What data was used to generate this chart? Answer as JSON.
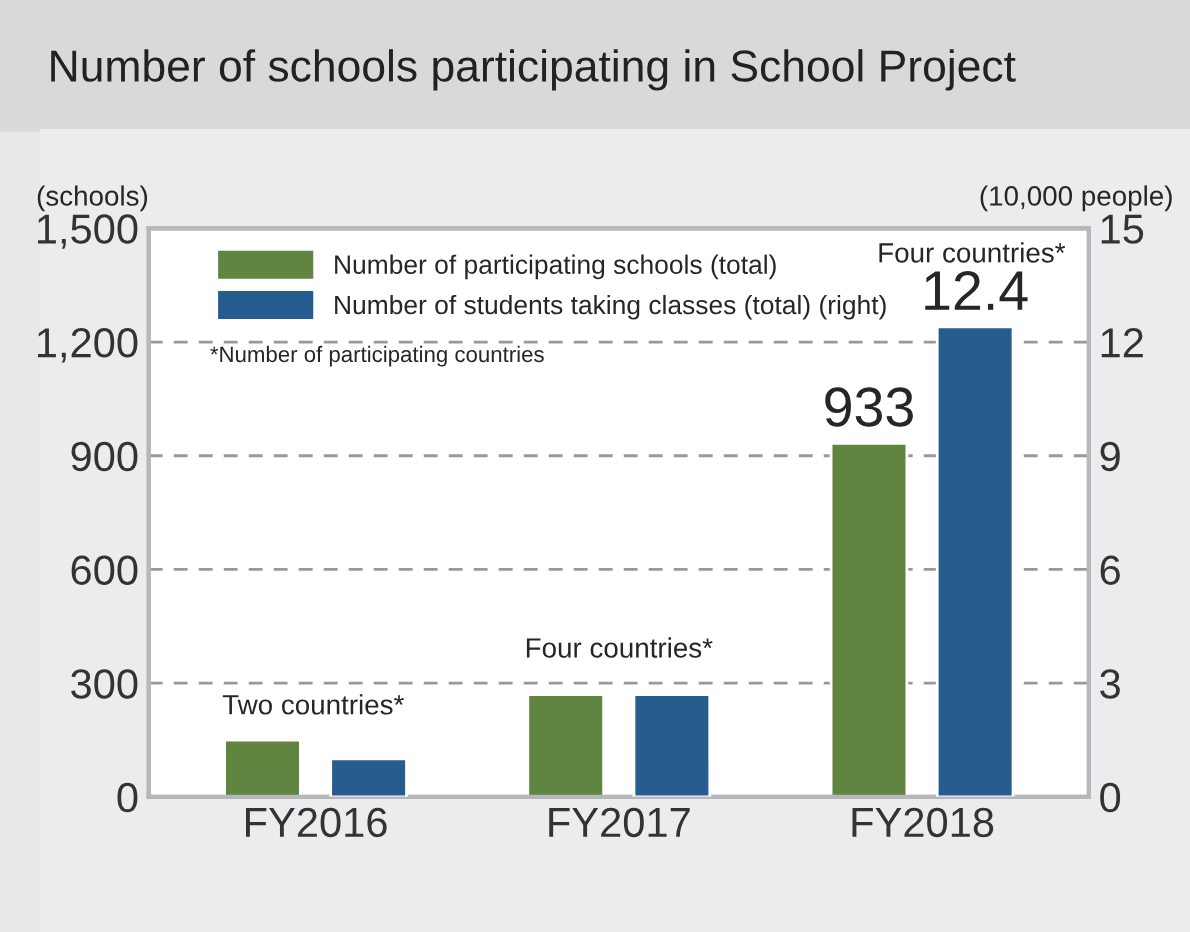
{
  "chart_data": {
    "type": "bar",
    "title": "Number of schools participating in School Project",
    "ylabel": "(schools)",
    "y2label": "(10,000 people)",
    "categories": [
      "FY2016",
      "FY2017",
      "FY2018"
    ],
    "series": [
      {
        "name": "Number of participating schools (total)",
        "color": "#5f8540",
        "values": [
          150,
          270,
          933
        ],
        "value_labels": [
          null,
          null,
          "933"
        ]
      },
      {
        "name": "Number of students taking classes (total) (right)",
        "color": "#265c8e",
        "values": [
          1.0,
          2.7,
          12.4
        ],
        "value_labels": [
          null,
          null,
          "12.4"
        ],
        "axis": "y2"
      }
    ],
    "ylim": [
      0,
      1500
    ],
    "yticks": [
      0,
      {
        "value": 300,
        "label": "300"
      },
      {
        "value": 600,
        "label": "600"
      },
      {
        "value": 900,
        "label": "900"
      },
      {
        "value": 1200,
        "label": "1,200"
      },
      {
        "value": 1500,
        "label": "1,500"
      }
    ],
    "y2lim": [
      0,
      15
    ],
    "y2ticks": [
      0,
      3,
      6,
      9,
      12,
      15
    ],
    "grid": "y",
    "legend": "top left",
    "annotations": [
      "Two countries*",
      "Four countries*",
      "Four countries*",
      "*Number of participating countries"
    ]
  }
}
